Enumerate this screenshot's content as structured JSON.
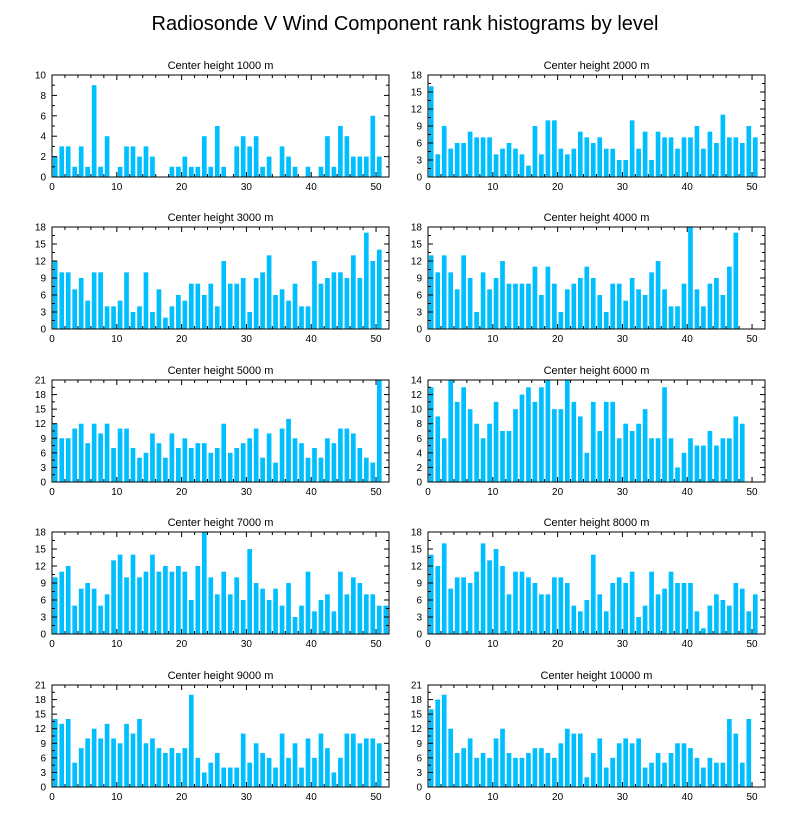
{
  "chart_data": {
    "type": "bar",
    "title": "Radiosonde V Wind Component rank histograms by level",
    "x_range": [
      0,
      52
    ],
    "x_ticks": [
      0,
      10,
      20,
      30,
      40,
      50
    ],
    "colors": {
      "bar": "#00bfff",
      "axis": "#000000",
      "background": "#ffffff"
    },
    "panels": [
      {
        "title": "Center height 1000 m",
        "ylim": [
          0,
          10
        ],
        "yticks": [
          0,
          2,
          4,
          6,
          8,
          10
        ],
        "values": [
          2,
          3,
          3,
          1,
          3,
          1,
          9,
          1,
          4,
          0,
          1,
          3,
          3,
          2,
          3,
          2,
          0,
          0,
          1,
          1,
          2,
          1,
          1,
          4,
          1,
          5,
          1,
          0,
          3,
          4,
          3,
          4,
          1,
          2,
          0,
          3,
          2,
          1,
          0,
          1,
          0,
          1,
          4,
          1,
          5,
          4,
          2,
          2,
          2,
          6,
          2
        ]
      },
      {
        "title": "Center height 2000 m",
        "ylim": [
          0,
          18
        ],
        "yticks": [
          0,
          3,
          6,
          9,
          12,
          15,
          18
        ],
        "values": [
          16,
          4,
          9,
          5,
          6,
          6,
          8,
          7,
          7,
          7,
          4,
          5,
          6,
          5,
          4,
          2,
          9,
          4,
          10,
          10,
          5,
          4,
          5,
          8,
          7,
          6,
          7,
          5,
          5,
          3,
          3,
          10,
          5,
          8,
          3,
          8,
          7,
          7,
          5,
          7,
          7,
          9,
          5,
          8,
          6,
          11,
          7,
          7,
          6,
          9,
          7
        ]
      },
      {
        "title": "Center height 3000 m",
        "ylim": [
          0,
          18
        ],
        "yticks": [
          0,
          3,
          6,
          9,
          12,
          15,
          18
        ],
        "values": [
          12,
          10,
          10,
          7,
          9,
          5,
          10,
          10,
          4,
          4,
          5,
          10,
          3,
          4,
          10,
          3,
          7,
          2,
          4,
          6,
          5,
          8,
          8,
          6,
          8,
          4,
          12,
          8,
          8,
          9,
          3,
          9,
          10,
          13,
          6,
          7,
          5,
          8,
          4,
          4,
          12,
          8,
          9,
          10,
          10,
          9,
          13,
          9,
          17,
          12,
          14
        ]
      },
      {
        "title": "Center height 4000 m",
        "ylim": [
          0,
          18
        ],
        "yticks": [
          0,
          3,
          6,
          9,
          12,
          15,
          18
        ],
        "values": [
          13,
          10,
          13,
          10,
          7,
          13,
          9,
          3,
          10,
          7,
          9,
          12,
          8,
          8,
          8,
          8,
          11,
          6,
          11,
          8,
          3,
          7,
          8,
          9,
          11,
          9,
          6,
          3,
          8,
          8,
          5,
          9,
          7,
          6,
          10,
          12,
          7,
          4,
          4,
          8,
          18,
          7,
          4,
          8,
          9,
          6,
          11,
          17,
          0,
          0,
          0
        ]
      },
      {
        "title": "Center height 5000 m",
        "ylim": [
          0,
          21
        ],
        "yticks": [
          0,
          3,
          6,
          9,
          12,
          15,
          18,
          21
        ],
        "values": [
          12,
          9,
          9,
          11,
          12,
          8,
          12,
          10,
          12,
          7,
          11,
          11,
          7,
          5,
          6,
          10,
          8,
          5,
          10,
          7,
          9,
          7,
          8,
          8,
          6,
          7,
          12,
          6,
          7,
          8,
          9,
          11,
          5,
          10,
          4,
          11,
          13,
          9,
          8,
          5,
          7,
          5,
          9,
          8,
          11,
          11,
          10,
          7,
          5,
          4,
          21
        ]
      },
      {
        "title": "Center height 6000 m",
        "ylim": [
          0,
          14
        ],
        "yticks": [
          0,
          2,
          4,
          6,
          8,
          10,
          12,
          14
        ],
        "values": [
          13,
          9,
          6,
          14,
          11,
          13,
          10,
          8,
          6,
          8,
          11,
          7,
          7,
          10,
          12,
          13,
          11,
          13,
          14,
          10,
          10,
          14,
          11,
          9,
          4,
          11,
          7,
          11,
          11,
          6,
          8,
          7,
          8,
          10,
          6,
          6,
          13,
          6,
          2,
          4,
          6,
          5,
          5,
          7,
          5,
          6,
          6,
          9,
          8,
          0,
          0
        ]
      },
      {
        "title": "Center height 7000 m",
        "ylim": [
          0,
          18
        ],
        "yticks": [
          0,
          3,
          6,
          9,
          12,
          15,
          18
        ],
        "values": [
          10,
          11,
          12,
          5,
          8,
          9,
          8,
          5,
          7,
          13,
          14,
          10,
          14,
          10,
          11,
          14,
          11,
          12,
          11,
          12,
          11,
          6,
          12,
          18,
          10,
          7,
          11,
          7,
          10,
          6,
          15,
          9,
          8,
          6,
          8,
          5,
          9,
          3,
          5,
          11,
          4,
          6,
          7,
          4,
          11,
          7,
          10,
          9,
          7,
          7,
          5,
          5
        ]
      },
      {
        "title": "Center height 8000 m",
        "ylim": [
          0,
          18
        ],
        "yticks": [
          0,
          3,
          6,
          9,
          12,
          15,
          18
        ],
        "values": [
          14,
          12,
          16,
          8,
          10,
          10,
          9,
          11,
          16,
          13,
          15,
          12,
          7,
          11,
          11,
          10,
          9,
          7,
          7,
          10,
          10,
          9,
          5,
          4,
          6,
          14,
          7,
          4,
          9,
          10,
          9,
          11,
          3,
          5,
          11,
          7,
          8,
          11,
          9,
          9,
          9,
          4,
          1,
          5,
          7,
          6,
          5,
          9,
          8,
          4,
          7
        ]
      },
      {
        "title": "Center height 9000 m",
        "ylim": [
          0,
          21
        ],
        "yticks": [
          0,
          3,
          6,
          9,
          12,
          15,
          18,
          21
        ],
        "values": [
          14,
          13,
          14,
          5,
          8,
          10,
          12,
          10,
          13,
          10,
          9,
          13,
          11,
          14,
          9,
          10,
          8,
          7,
          8,
          7,
          8,
          19,
          6,
          3,
          5,
          7,
          4,
          4,
          4,
          11,
          5,
          9,
          7,
          6,
          4,
          11,
          6,
          9,
          4,
          10,
          6,
          11,
          8,
          3,
          6,
          11,
          11,
          9,
          10,
          10,
          9
        ]
      },
      {
        "title": "Center height 10000 m",
        "ylim": [
          0,
          21
        ],
        "yticks": [
          0,
          3,
          6,
          9,
          12,
          15,
          18,
          21
        ],
        "values": [
          16,
          18,
          19,
          12,
          7,
          8,
          10,
          6,
          7,
          6,
          10,
          12,
          7,
          6,
          6,
          7,
          8,
          8,
          7,
          6,
          9,
          12,
          11,
          11,
          2,
          7,
          10,
          4,
          6,
          9,
          10,
          9,
          10,
          4,
          5,
          7,
          5,
          7,
          9,
          9,
          8,
          6,
          4,
          6,
          5,
          5,
          14,
          11,
          5,
          14,
          0
        ]
      }
    ]
  }
}
